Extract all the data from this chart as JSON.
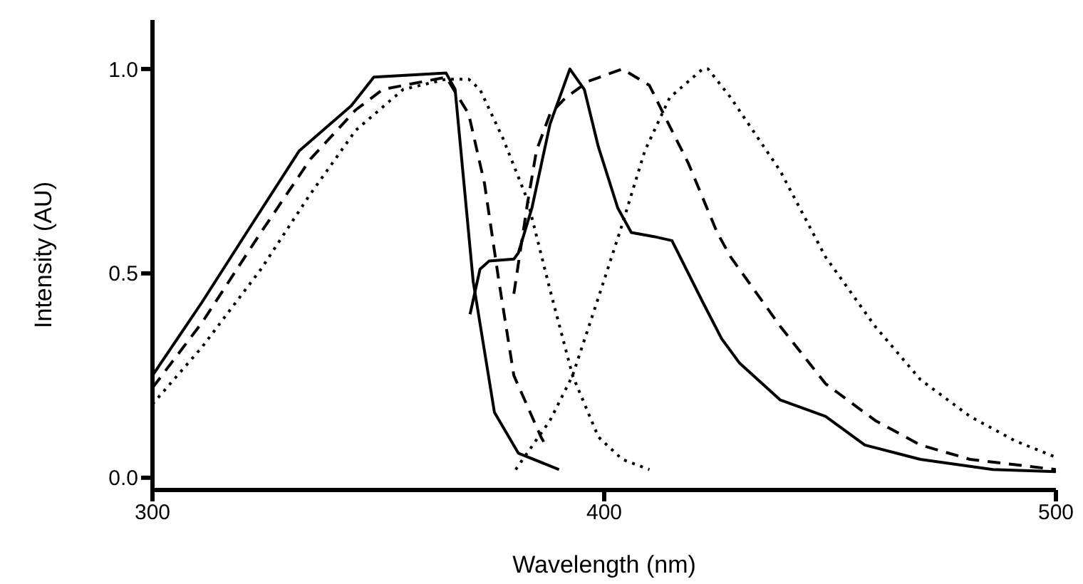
{
  "chart_data": {
    "type": "line",
    "xlabel": "Wavelength (nm)",
    "ylabel": "Intensity (AU)",
    "xlim": [
      300,
      500
    ],
    "ylim": [
      -0.03,
      1.12
    ],
    "xticks": [
      300,
      400,
      500
    ],
    "yticks": [
      {
        "value": 0,
        "label": "0.0"
      },
      {
        "value": 0.5,
        "label": "0.5"
      },
      {
        "value": 1,
        "label": "1.0"
      }
    ],
    "grid": false,
    "legend": false,
    "marker": "none",
    "series": [
      {
        "color": "#000000",
        "line_style": "solid",
        "x": [
          300,
          311,
          322,
          332.5,
          344,
          349,
          365,
          367,
          371,
          375.7,
          381,
          390
        ],
        "values": [
          0.25,
          0.43,
          0.62,
          0.8,
          0.91,
          0.98,
          0.99,
          0.95,
          0.48,
          0.16,
          0.06,
          0.02
        ]
      },
      {
        "color": "#000000",
        "line_style": "dashed",
        "x": [
          300,
          311,
          324,
          335,
          345,
          351,
          365,
          370,
          373.5,
          376.7,
          380,
          386,
          387
        ],
        "values": [
          0.22,
          0.38,
          0.6,
          0.78,
          0.9,
          0.95,
          0.98,
          0.89,
          0.72,
          0.48,
          0.25,
          0.1,
          0.08
        ]
      },
      {
        "color": "#000000",
        "line_style": "dotted",
        "x": [
          300,
          311,
          324,
          334.7,
          345,
          355.5,
          365,
          370,
          372.5,
          377.6,
          383,
          388,
          393,
          398.7,
          404,
          410
        ],
        "values": [
          0.18,
          0.32,
          0.51,
          0.69,
          0.85,
          0.95,
          0.975,
          0.975,
          0.95,
          0.83,
          0.68,
          0.46,
          0.25,
          0.1,
          0.045,
          0.02
        ]
      },
      {
        "color": "#000000",
        "line_style": "solid",
        "x": [
          370.3,
          372.5,
          374.5,
          380,
          381,
          384,
          388,
          392.4,
          395.6,
          398.7,
          403,
          406,
          411,
          415,
          421.8,
          426,
          430,
          439,
          449,
          457.7,
          470,
          486,
          500
        ],
        "values": [
          0.4,
          0.51,
          0.53,
          0.535,
          0.55,
          0.66,
          0.865,
          1.0,
          0.95,
          0.81,
          0.66,
          0.6,
          0.59,
          0.58,
          0.43,
          0.34,
          0.28,
          0.19,
          0.15,
          0.08,
          0.045,
          0.02,
          0.015
        ]
      },
      {
        "color": "#000000",
        "line_style": "dashed",
        "x": [
          380,
          383,
          385,
          388,
          391.5,
          396.5,
          404,
          410,
          414.5,
          418.6,
          425,
          428,
          439,
          449,
          460,
          470,
          481,
          500
        ],
        "values": [
          0.45,
          0.67,
          0.8,
          0.89,
          0.93,
          0.97,
          1.0,
          0.96,
          0.86,
          0.77,
          0.6,
          0.54,
          0.37,
          0.23,
          0.14,
          0.08,
          0.045,
          0.02
        ]
      },
      {
        "color": "#000000",
        "line_style": "dotted",
        "x": [
          380.4,
          388,
          393,
          398.7,
          404,
          409,
          414.5,
          421.8,
          423,
          428,
          439,
          449,
          460,
          470,
          481,
          491,
          500
        ],
        "values": [
          0.02,
          0.14,
          0.25,
          0.44,
          0.62,
          0.8,
          0.93,
          1.0,
          1.0,
          0.93,
          0.75,
          0.54,
          0.37,
          0.24,
          0.15,
          0.09,
          0.05
        ]
      }
    ]
  }
}
